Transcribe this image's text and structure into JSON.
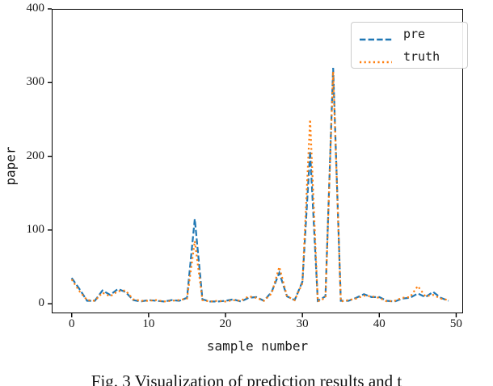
{
  "figure": {
    "caption": "Fig. 3 Visualization of prediction results and t"
  },
  "chart_data": {
    "type": "line",
    "title": "",
    "xlabel": "sample number",
    "ylabel": "paper",
    "xlim": [
      -2.6,
      50.9
    ],
    "ylim": [
      -13,
      400
    ],
    "xticks": [
      0,
      10,
      20,
      30,
      40,
      50
    ],
    "yticks": [
      0,
      100,
      200,
      300,
      400
    ],
    "grid": false,
    "legend_position": "upper right",
    "frame_color": "#000000",
    "x": [
      0,
      1,
      2,
      3,
      4,
      5,
      6,
      7,
      8,
      9,
      10,
      11,
      12,
      13,
      14,
      15,
      16,
      17,
      18,
      19,
      20,
      21,
      22,
      23,
      24,
      25,
      26,
      27,
      28,
      29,
      30,
      31,
      32,
      33,
      34,
      35,
      36,
      37,
      38,
      39,
      40,
      41,
      42,
      43,
      44,
      45,
      46,
      47,
      48,
      49
    ],
    "series": [
      {
        "name": "pre",
        "color": "#1f77b4",
        "linestyle": "dashed",
        "values": [
          35,
          20,
          4,
          4,
          18,
          12,
          20,
          16,
          5,
          3,
          5,
          4,
          3,
          5,
          4,
          8,
          115,
          6,
          3,
          3,
          4,
          6,
          3,
          8,
          9,
          4,
          16,
          42,
          10,
          5,
          30,
          207,
          4,
          10,
          320,
          4,
          4,
          8,
          13,
          9,
          9,
          4,
          3,
          7,
          8,
          14,
          9,
          16,
          8,
          4
        ]
      },
      {
        "name": "truth",
        "color": "#ff7f0e",
        "linestyle": "dotted",
        "values": [
          33,
          17,
          5,
          4,
          15,
          10,
          17,
          18,
          6,
          4,
          4,
          5,
          3,
          4,
          5,
          7,
          85,
          5,
          3,
          4,
          3,
          5,
          4,
          10,
          8,
          4,
          14,
          50,
          10,
          5,
          28,
          250,
          3,
          8,
          315,
          3,
          5,
          7,
          11,
          10,
          8,
          3,
          4,
          8,
          9,
          24,
          10,
          12,
          7,
          5
        ]
      }
    ]
  }
}
